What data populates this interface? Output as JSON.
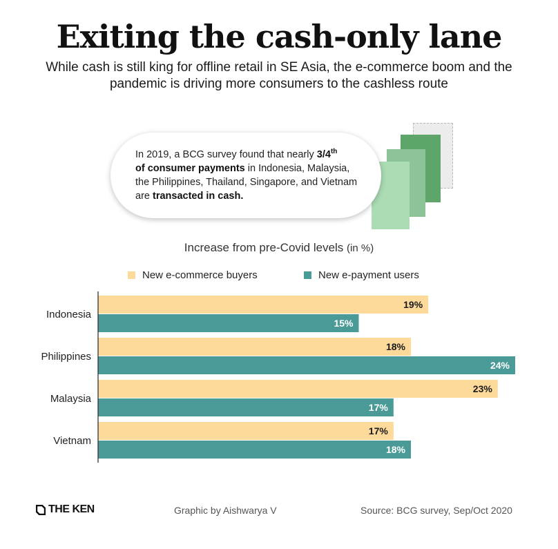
{
  "title": "Exiting the cash-only lane",
  "subtitle": "While cash is still king for offline retail in SE Asia, the e-commerce boom and the pandemic is driving more consumers to the cashless route",
  "callout": {
    "part1": "In 2019, a BCG survey found that nearly ",
    "bold1": "3/4",
    "sup": "th",
    "bold2": "of consumer payments",
    "part2": " in Indonesia, Malaysia, the Philippines, Thailand, Singapore, and Vietnam are ",
    "bold3": "transacted in cash."
  },
  "chart_data": {
    "type": "bar",
    "orientation": "horizontal",
    "title": "Increase from pre-Covid levels",
    "title_unit": "(in %)",
    "categories": [
      "Indonesia",
      "Philippines",
      "Malaysia",
      "Vietnam"
    ],
    "series": [
      {
        "name": "New e-commerce buyers",
        "color": "#fdd99a",
        "values": [
          19,
          18,
          23,
          17
        ]
      },
      {
        "name": "New e-payment users",
        "color": "#4a9b98",
        "values": [
          15,
          24,
          17,
          18
        ]
      }
    ],
    "value_suffix": "%",
    "legend_position": "top",
    "grid": false,
    "xlim": [
      0,
      24
    ]
  },
  "footer": {
    "logo": "THE KEN",
    "credit": "Graphic by Aishwarya V",
    "source": "Source: BCG survey, Sep/Oct 2020"
  }
}
